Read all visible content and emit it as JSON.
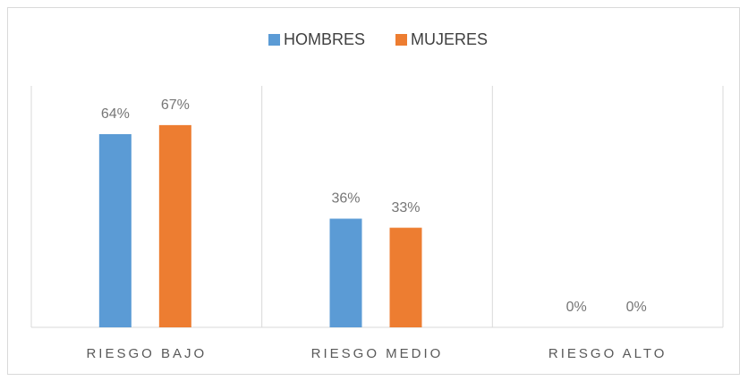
{
  "chart_data": {
    "type": "bar",
    "categories": [
      "RIESGO BAJO",
      "RIESGO MEDIO",
      "RIESGO ALTO"
    ],
    "series": [
      {
        "name": "HOMBRES",
        "color": "#5b9bd5",
        "values": [
          64,
          36,
          0
        ],
        "value_labels": [
          "64%",
          "36%",
          "0%"
        ]
      },
      {
        "name": "MUJERES",
        "color": "#ed7d31",
        "values": [
          67,
          33,
          0
        ],
        "value_labels": [
          "67%",
          "33%",
          "0%"
        ]
      }
    ],
    "legend": "top"
  }
}
